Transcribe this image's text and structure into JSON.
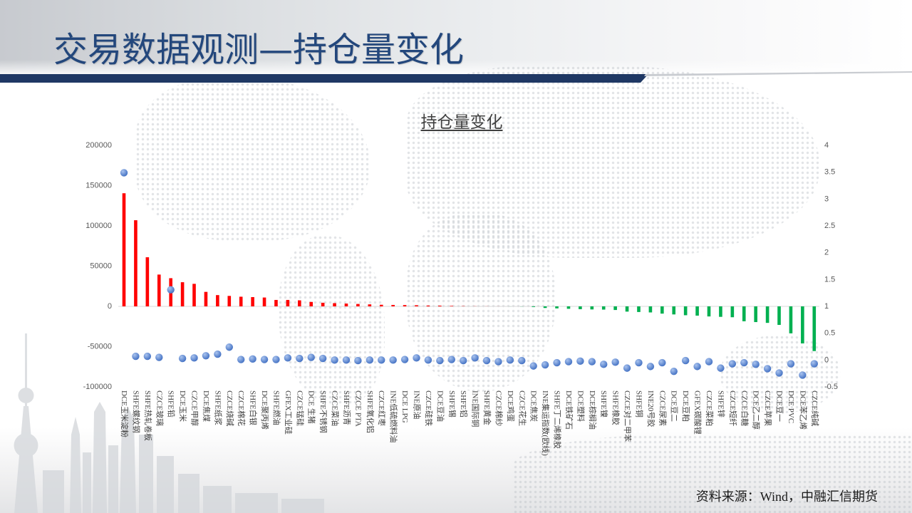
{
  "slide": {
    "title": "交易数据观测—持仓量变化",
    "source": "资料来源：Wind，中融汇信期货"
  },
  "colors": {
    "title_text": "#23477c",
    "header_stripe": "#1f3864",
    "positive_bar": "#ff0000",
    "negative_bar": "#00b050",
    "dot": "#4472c4",
    "axis_text": "#595959"
  },
  "chart_data": {
    "type": "bar",
    "title": "持仓量变化",
    "xlabel": "",
    "ylabel": "",
    "categories": [
      "DCE玉米淀粉",
      "SHFE螺纹钢",
      "SHFE热轧卷板",
      "CZCE玻璃",
      "SHFE铅",
      "DCE玉米",
      "CZCE甲醇",
      "DCE焦煤",
      "SHFE纸浆",
      "CZCE烧碱",
      "CZCE棉花",
      "SHFE白银",
      "DCE聚丙烯",
      "SHFE燃油",
      "GFEX工业硅",
      "CZCE锰硅",
      "DCE 生猪",
      "SHFE不锈钢",
      "CZCE菜油",
      "SHFE沥青",
      "CZCE PTA",
      "SHFE氧化铝",
      "CZCE红枣",
      "INE低硫燃料油",
      "DCE LPG",
      "INE原油",
      "CZCE硅铁",
      "DCE豆油",
      "SHFE锡",
      "SHFE铝",
      "INE国际铜",
      "SHFE黄金",
      "CZCE棉纱",
      "DCE鸡蛋",
      "CZCE花生",
      "DCE焦炭",
      "INE集运指数(欧线)",
      "SHFE丁二烯橡胶",
      "DCE铁矿石",
      "DCE塑料",
      "DCE棕榈油",
      "SHFE镍",
      "SHFE橡胶",
      "CZCE对二甲苯",
      "SHFE铜",
      "INE20号胶",
      "CZCE尿素",
      "DCE豆二",
      "DCE豆粕",
      "GFEX碳酸锂",
      "CZCE菜粕",
      "SHFE锌",
      "CZCE短纤",
      "CZCE白糖",
      "DCE乙二醇",
      "CZCE苹果",
      "DCE豆一",
      "DCE PVC",
      "DCE苯乙烯",
      "CZCE纯碱"
    ],
    "series": [
      {
        "type": "bar",
        "axis": "left",
        "values": [
          140500,
          107000,
          61000,
          39500,
          35000,
          30000,
          28000,
          18000,
          14000,
          13000,
          12000,
          11500,
          11000,
          8000,
          8000,
          7500,
          5500,
          4500,
          4000,
          3500,
          3000,
          2500,
          2000,
          1800,
          1600,
          1400,
          1000,
          900,
          600,
          300,
          150,
          100,
          50,
          -50,
          -150,
          -800,
          -2000,
          -2500,
          -3000,
          -3500,
          -3800,
          -4000,
          -4500,
          -6500,
          -7000,
          -7500,
          -9000,
          -10000,
          -11000,
          -11500,
          -12500,
          -13000,
          -13500,
          -18500,
          -19500,
          -20500,
          -23000,
          -33500,
          -46000,
          -55500
        ]
      },
      {
        "type": "scatter",
        "axis": "right",
        "values": [
          3.49,
          0.07,
          0.07,
          0.05,
          1.31,
          0.03,
          0.04,
          0.08,
          0.11,
          0.24,
          0.01,
          0.02,
          0.01,
          0.01,
          0.04,
          0.03,
          0.05,
          0.03,
          0.0,
          0.0,
          -0.01,
          0.0,
          0.0,
          0.0,
          0.01,
          0.04,
          0.0,
          -0.01,
          0.01,
          -0.01,
          0.04,
          -0.01,
          -0.03,
          0.0,
          -0.01,
          -0.11,
          -0.09,
          -0.05,
          -0.03,
          -0.02,
          -0.03,
          -0.08,
          -0.04,
          -0.15,
          -0.05,
          -0.12,
          -0.05,
          -0.21,
          -0.01,
          -0.12,
          -0.03,
          -0.15,
          -0.07,
          -0.05,
          -0.08,
          -0.16,
          -0.24,
          -0.07,
          -0.28,
          -0.07
        ]
      }
    ],
    "ylim": [
      -100000,
      200000
    ],
    "yticks": [
      "200000",
      "150000",
      "100000",
      "50000",
      "0",
      "-50000",
      "-100000"
    ],
    "y2lim": [
      -0.5,
      4
    ],
    "y2ticks": [
      "4",
      "3.5",
      "3",
      "2.5",
      "2",
      "1.5",
      "1",
      "0.5",
      "0",
      "-0.5"
    ],
    "grid": false,
    "legend": "none"
  }
}
